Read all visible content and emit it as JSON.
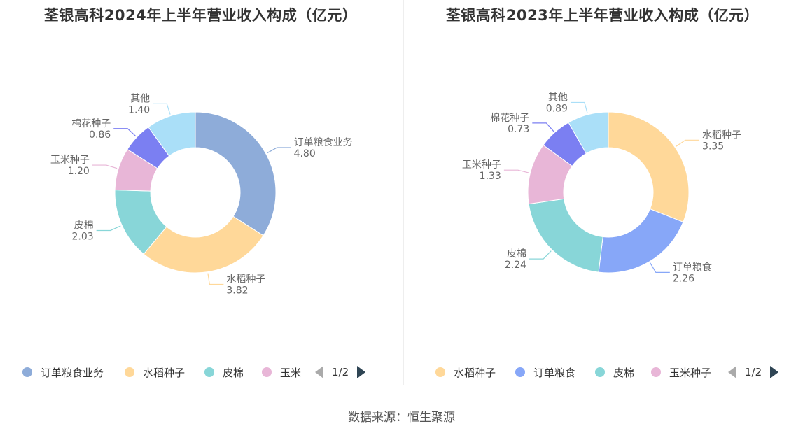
{
  "chart_data": [
    {
      "type": "pie",
      "title": "荃银高科2024年上半年营业收入构成（亿元）",
      "slices": [
        {
          "label": "订单粮食业务",
          "value": 4.8,
          "color": "#8eacd9"
        },
        {
          "label": "水稻种子",
          "value": 3.82,
          "color": "#ffd899"
        },
        {
          "label": "皮棉",
          "value": 2.03,
          "color": "#88d6d8"
        },
        {
          "label": "玉米种子",
          "value": 1.2,
          "color": "#e8b6d7"
        },
        {
          "label": "棉花种子",
          "value": 0.86,
          "color": "#7b7ff2"
        },
        {
          "label": "其他",
          "value": 1.4,
          "color": "#aadff8"
        }
      ],
      "value_labels": [
        "4.80",
        "3.82",
        "2.03",
        "1.20",
        "0.86",
        "1.40"
      ],
      "legend": {
        "position": "bottom",
        "items": [
          {
            "label": "订单粮食业务",
            "color": "#8eacd9"
          },
          {
            "label": "水稻种子",
            "color": "#ffd899"
          },
          {
            "label": "皮棉",
            "color": "#88d6d8"
          },
          {
            "label": "玉米",
            "color": "#e8b6d7"
          }
        ],
        "page": "1/2"
      }
    },
    {
      "type": "pie",
      "title": "荃银高科2023年上半年营业收入构成（亿元）",
      "slices": [
        {
          "label": "水稻种子",
          "value": 3.35,
          "color": "#ffd899"
        },
        {
          "label": "订单粮食",
          "value": 2.26,
          "color": "#87a7f8"
        },
        {
          "label": "皮棉",
          "value": 2.24,
          "color": "#88d6d8"
        },
        {
          "label": "玉米种子",
          "value": 1.33,
          "color": "#e8b6d7"
        },
        {
          "label": "棉花种子",
          "value": 0.73,
          "color": "#7b7ff2"
        },
        {
          "label": "其他",
          "value": 0.89,
          "color": "#aadff8"
        }
      ],
      "value_labels": [
        "3.35",
        "2.26",
        "2.24",
        "1.33",
        "0.73",
        "0.89"
      ],
      "legend": {
        "position": "bottom",
        "items": [
          {
            "label": "水稻种子",
            "color": "#ffd899"
          },
          {
            "label": "订单粮食",
            "color": "#87a7f8"
          },
          {
            "label": "皮棉",
            "color": "#88d6d8"
          },
          {
            "label": "玉米种子",
            "color": "#e8b6d7"
          }
        ],
        "page": "1/2"
      }
    }
  ],
  "footer": {
    "source": "数据来源：恒生聚源"
  }
}
